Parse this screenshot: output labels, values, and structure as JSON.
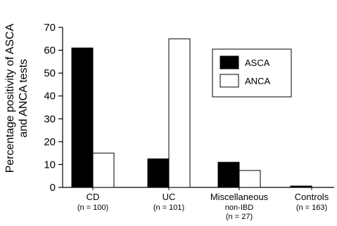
{
  "chart_data": {
    "type": "bar",
    "title": "",
    "xlabel": "",
    "ylabel_lines": [
      "Percentage positivity of ASCA",
      "and ANCA tests"
    ],
    "ylim": [
      0,
      70
    ],
    "yticks": [
      0,
      10,
      20,
      30,
      40,
      50,
      60,
      70
    ],
    "categories": [
      {
        "label": "CD",
        "sub": [
          "(n = 100)"
        ]
      },
      {
        "label": "UC",
        "sub": [
          "(n = 101)"
        ]
      },
      {
        "label": "Miscellaneous",
        "sub": [
          "non-IBD",
          "(n = 27)"
        ]
      },
      {
        "label": "Controls",
        "sub": [
          "(n = 163)"
        ]
      }
    ],
    "series": [
      {
        "name": "ASCA",
        "fill": "#000000",
        "values": [
          61,
          12.5,
          11,
          0.6
        ]
      },
      {
        "name": "ANCA",
        "fill": "#ffffff",
        "values": [
          15,
          65,
          7.4,
          0
        ]
      }
    ],
    "legend_position": "top-right",
    "grid": false
  }
}
